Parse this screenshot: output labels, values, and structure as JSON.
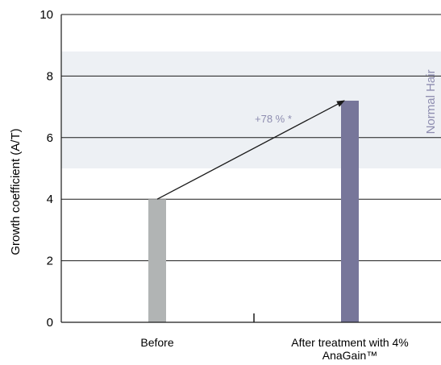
{
  "chart_data": {
    "type": "bar",
    "title": "",
    "xlabel": "",
    "ylabel": "Growth coefficient (A/T)",
    "ylim": [
      0,
      10
    ],
    "yticks": [
      0,
      2,
      4,
      6,
      8,
      10
    ],
    "grid": true,
    "categories": [
      "Before",
      "After treatment with 4% AnaGain™"
    ],
    "category_lines": [
      [
        "Before"
      ],
      [
        "After treatment with 4%",
        "AnaGain™"
      ]
    ],
    "values": [
      4.0,
      7.2
    ],
    "bar_colors": [
      "#b1b4b4",
      "#77769a"
    ],
    "reference_band": {
      "label": "Normal Hair",
      "range": [
        5.0,
        8.8
      ],
      "color": "#edf0f4",
      "label_color": "#8e8db0"
    },
    "annotation": {
      "text": "+78 % *",
      "from_value": 4.0,
      "to_value": 7.2,
      "color": "#8e8db0"
    },
    "legend": "none"
  }
}
